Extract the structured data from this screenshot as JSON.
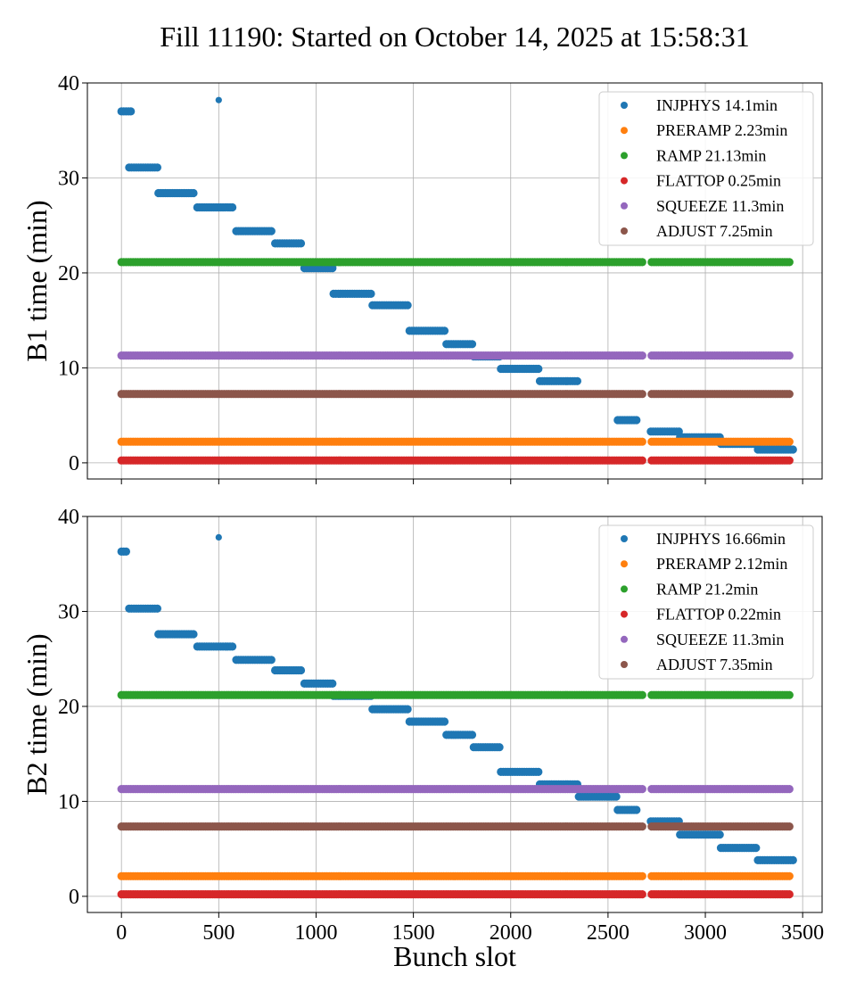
{
  "title": "Fill 11190: Started on October 14, 2025 at 15:58:31",
  "colors": {
    "INJPHYS": "#1f77b4",
    "PRERAMP": "#ff7f0e",
    "RAMP": "#2ca02c",
    "FLATTOP": "#d62728",
    "SQUEEZE": "#9467bd",
    "ADJUST": "#8c564b"
  },
  "chart_data": [
    {
      "type": "scatter",
      "ylabel": "B1 time (min)",
      "xlabel": "",
      "xlim": [
        -175,
        3600
      ],
      "ylim": [
        -1.7,
        40
      ],
      "xticks": [
        0,
        500,
        1000,
        1500,
        2000,
        2500,
        3000,
        3500
      ],
      "yticks": [
        0,
        10,
        20,
        30,
        40
      ],
      "xtick_labels_shown": false,
      "grid": true,
      "legend": "upper-right",
      "gaps": [
        [
          2680,
          2720
        ]
      ],
      "series": [
        {
          "name": "INJPHYS 14.1min",
          "key": "INJPHYS",
          "isolated": [
            [
              500,
              38.2
            ]
          ],
          "segments": [
            [
              0,
              50,
              37.0
            ],
            [
              40,
              185,
              31.1
            ],
            [
              190,
              380,
              28.4
            ],
            [
              390,
              580,
              26.9
            ],
            [
              590,
              780,
              24.4
            ],
            [
              790,
              930,
              23.1
            ],
            [
              940,
              1090,
              20.5
            ],
            [
              1090,
              1290,
              17.8
            ],
            [
              1290,
              1480,
              16.6
            ],
            [
              1480,
              1670,
              13.9
            ],
            [
              1670,
              1810,
              12.5
            ],
            [
              1810,
              1950,
              11.2
            ],
            [
              1950,
              2150,
              9.9
            ],
            [
              2150,
              2350,
              8.6
            ],
            [
              2550,
              2650,
              4.5
            ],
            [
              2720,
              2870,
              3.3
            ],
            [
              2870,
              3080,
              2.7
            ],
            [
              3080,
              3270,
              2.0
            ],
            [
              3270,
              3460,
              1.4
            ]
          ]
        },
        {
          "name": "PRERAMP 2.23min",
          "key": "PRERAMP",
          "segments": [
            [
              0,
              3440,
              2.23
            ]
          ]
        },
        {
          "name": "RAMP 21.13min",
          "key": "RAMP",
          "segments": [
            [
              0,
              3440,
              21.13
            ]
          ]
        },
        {
          "name": "FLATTOP 0.25min",
          "key": "FLATTOP",
          "segments": [
            [
              0,
              3440,
              0.25
            ]
          ]
        },
        {
          "name": "SQUEEZE 11.3min",
          "key": "SQUEEZE",
          "segments": [
            [
              0,
              3440,
              11.3
            ]
          ]
        },
        {
          "name": "ADJUST 7.25min",
          "key": "ADJUST",
          "segments": [
            [
              0,
              3440,
              7.25
            ]
          ]
        }
      ]
    },
    {
      "type": "scatter",
      "ylabel": "B2 time (min)",
      "xlabel": "Bunch slot",
      "xlim": [
        -175,
        3600
      ],
      "ylim": [
        -1.7,
        40
      ],
      "xticks": [
        0,
        500,
        1000,
        1500,
        2000,
        2500,
        3000,
        3500
      ],
      "yticks": [
        0,
        10,
        20,
        30,
        40
      ],
      "xtick_labels_shown": true,
      "grid": true,
      "legend": "upper-right",
      "gaps": [
        [
          2680,
          2720
        ]
      ],
      "series": [
        {
          "name": "INJPHYS 16.66min",
          "key": "INJPHYS",
          "isolated": [
            [
              500,
              37.8
            ]
          ],
          "segments": [
            [
              0,
              25,
              36.3
            ],
            [
              40,
              185,
              30.3
            ],
            [
              190,
              380,
              27.6
            ],
            [
              390,
              580,
              26.3
            ],
            [
              590,
              780,
              24.9
            ],
            [
              790,
              930,
              23.8
            ],
            [
              940,
              1090,
              22.4
            ],
            [
              1090,
              1290,
              21.1
            ],
            [
              1290,
              1480,
              19.7
            ],
            [
              1480,
              1670,
              18.4
            ],
            [
              1670,
              1810,
              17.0
            ],
            [
              1810,
              1950,
              15.7
            ],
            [
              1950,
              2150,
              13.1
            ],
            [
              2150,
              2350,
              11.8
            ],
            [
              2350,
              2550,
              10.5
            ],
            [
              2550,
              2650,
              9.1
            ],
            [
              2720,
              2870,
              7.9
            ],
            [
              2870,
              3080,
              6.5
            ],
            [
              3080,
              3270,
              5.1
            ],
            [
              3270,
              3460,
              3.8
            ]
          ]
        },
        {
          "name": "PRERAMP 2.12min",
          "key": "PRERAMP",
          "segments": [
            [
              0,
              3440,
              2.12
            ]
          ]
        },
        {
          "name": "RAMP 21.2min",
          "key": "RAMP",
          "segments": [
            [
              0,
              3440,
              21.2
            ]
          ]
        },
        {
          "name": "FLATTOP 0.22min",
          "key": "FLATTOP",
          "segments": [
            [
              0,
              3440,
              0.22
            ]
          ]
        },
        {
          "name": "SQUEEZE 11.3min",
          "key": "SQUEEZE",
          "segments": [
            [
              0,
              3440,
              11.3
            ]
          ]
        },
        {
          "name": "ADJUST 7.35min",
          "key": "ADJUST",
          "segments": [
            [
              0,
              3440,
              7.35
            ]
          ]
        }
      ]
    }
  ]
}
